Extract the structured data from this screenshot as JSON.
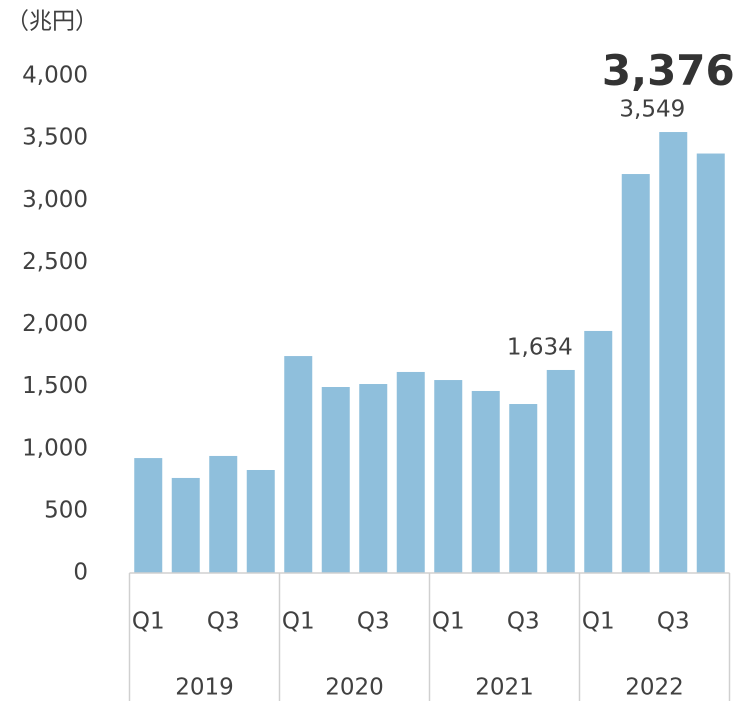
{
  "chart_data": {
    "type": "bar",
    "y_label": "（兆円）",
    "categories": [
      "Q1",
      null,
      "Q3",
      null,
      "Q1",
      null,
      "Q3",
      null,
      "Q1",
      null,
      "Q3",
      null,
      "Q1",
      null,
      "Q3",
      null
    ],
    "groups": [
      "2019",
      "2020",
      "2021",
      "2022"
    ],
    "values": [
      925,
      765,
      942,
      829,
      1746,
      1497,
      1521,
      1618,
      1553,
      1465,
      1360,
      1634,
      1948,
      3211,
      3549,
      3376
    ],
    "value_labels": [
      null,
      null,
      null,
      null,
      null,
      null,
      null,
      null,
      null,
      null,
      null,
      "1,634",
      null,
      null,
      "3,549",
      "3,376"
    ],
    "color": "#8fbfdc",
    "ylim": [
      0,
      4000
    ],
    "yticks": [
      0,
      500,
      {
        "value": 1000,
        "label": "1,000"
      },
      {
        "value": 1500,
        "label": "1,500"
      },
      {
        "value": 2000,
        "label": "2,000"
      },
      {
        "value": 2500,
        "label": "2,500"
      },
      {
        "value": 3000,
        "label": "3,000"
      },
      {
        "value": 3500,
        "label": "3,500"
      },
      {
        "value": 4000,
        "label": "4,000"
      }
    ],
    "grid": false
  }
}
